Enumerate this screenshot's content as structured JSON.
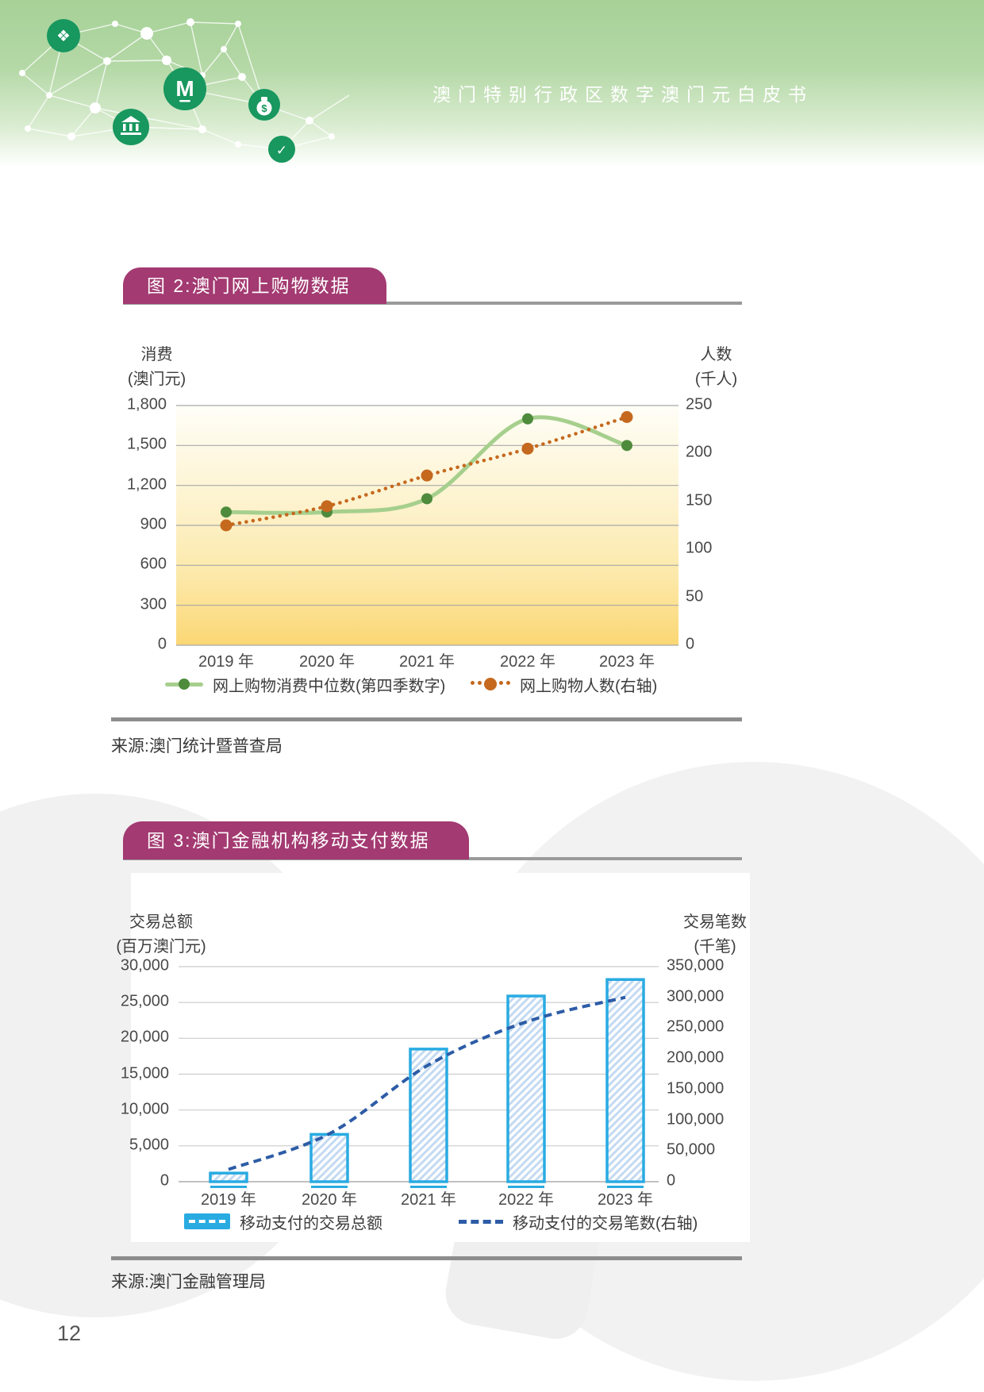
{
  "header": {
    "title": "澳门特别行政区数字澳门元白皮书",
    "icons": [
      "blockchain-cube",
      "pataca-m-logo",
      "bank",
      "money-bag",
      "handshake-check"
    ]
  },
  "figure2": {
    "title": "图 2:澳门网上购物数据",
    "left_axis_title": [
      "消费",
      "(澳门元)"
    ],
    "right_axis_title": [
      "人数",
      "(千人)"
    ],
    "left_ticks": [
      "1,800",
      "1,500",
      "1,200",
      "900",
      "600",
      "300",
      "0"
    ],
    "right_ticks": [
      "250",
      "200",
      "150",
      "100",
      "50",
      "0"
    ],
    "x_labels": [
      "2019 年",
      "2020 年",
      "2021 年",
      "2022 年",
      "2023 年"
    ],
    "legend": [
      {
        "label": "网上购物消费中位数(第四季数字)"
      },
      {
        "label": "网上购物人数(右轴)"
      }
    ],
    "source": "来源:澳门统计暨普查局"
  },
  "figure3": {
    "title": "图 3:澳门金融机构移动支付数据",
    "left_axis_title": [
      "交易总额",
      "(百万澳门元)"
    ],
    "right_axis_title": [
      "交易笔数",
      "(千笔)"
    ],
    "left_ticks": [
      "30,000",
      "25,000",
      "20,000",
      "15,000",
      "10,000",
      "5,000",
      "0"
    ],
    "right_ticks": [
      "350,000",
      "300,000",
      "250,000",
      "200,000",
      "150,000",
      "100,000",
      "50,000",
      "0"
    ],
    "x_labels": [
      "2019 年",
      "2020 年",
      "2021 年",
      "2022 年",
      "2023 年"
    ],
    "legend": [
      {
        "label": "移动支付的交易总额"
      },
      {
        "label": "移动支付的交易笔数(右轴)"
      }
    ],
    "source": "来源:澳门金融管理局"
  },
  "page_number": "12",
  "palette": {
    "header_green": "#a6d197",
    "icon_green": "#18975f",
    "title_bar_magenta": "#a33a71",
    "green_line": "#a6cf8d",
    "green_marker": "#4e8b3c",
    "orange_dotted": "#c5691e",
    "bar_border_cyan": "#29abe2",
    "bar_hatch_blue": "#c3daf1",
    "dash_line_blue": "#2d5ca6",
    "plot_yellow_bottom": "#fbd774"
  },
  "chart_data": [
    {
      "type": "line",
      "title": "图 2:澳门网上购物数据",
      "categories": [
        "2019 年",
        "2020 年",
        "2021 年",
        "2022 年",
        "2023 年"
      ],
      "series": [
        {
          "name": "网上购物消费中位数(第四季数字)",
          "axis": "left",
          "style": "solid",
          "marker": "circle",
          "color": "#a6cf8d",
          "marker_color": "#4e8b3c",
          "values": [
            1000,
            1000,
            1100,
            1700,
            1500
          ]
        },
        {
          "name": "网上购物人数(右轴)",
          "axis": "right",
          "style": "dotted",
          "marker": "circle",
          "color": "#c5691e",
          "marker_color": "#c5691e",
          "values": [
            125,
            145,
            177,
            205,
            238
          ]
        }
      ],
      "left_axis": {
        "label": "消费(澳门元)",
        "min": 0,
        "max": 1800,
        "step": 300
      },
      "right_axis": {
        "label": "人数(千人)",
        "min": 0,
        "max": 250,
        "step": 50
      },
      "grid": true,
      "legend_position": "bottom",
      "plot_background": "yellow-gradient"
    },
    {
      "type": "bar",
      "title": "图 3:澳门金融机构移动支付数据",
      "categories": [
        "2019 年",
        "2020 年",
        "2021 年",
        "2022 年",
        "2023 年"
      ],
      "series": [
        {
          "name": "移动支付的交易总额",
          "type": "bar",
          "axis": "left",
          "color": "#29abe2",
          "fill": "diagonal-hatch",
          "values": [
            1200,
            6600,
            18500,
            25900,
            28200
          ]
        },
        {
          "name": "移动支付的交易笔数(右轴)",
          "type": "line",
          "axis": "right",
          "style": "dashed",
          "color": "#2d5ca6",
          "values": [
            20000,
            78000,
            190000,
            260000,
            300000
          ]
        }
      ],
      "left_axis": {
        "label": "交易总额(百万澳门元)",
        "min": 0,
        "max": 30000,
        "step": 5000
      },
      "right_axis": {
        "label": "交易笔数(千笔)",
        "min": 0,
        "max": 350000,
        "step": 50000
      },
      "grid": true,
      "legend_position": "bottom"
    }
  ]
}
